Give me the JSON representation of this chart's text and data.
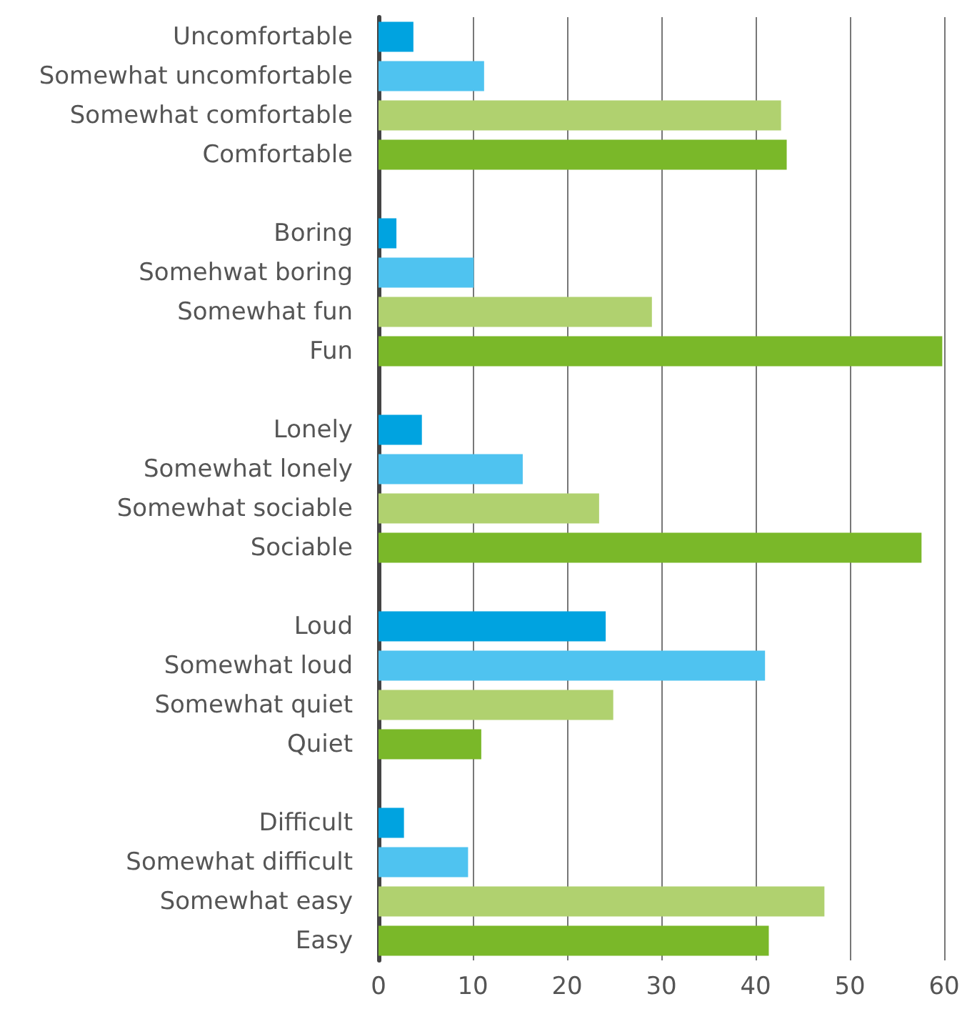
{
  "chart_data": {
    "type": "bar",
    "orientation": "horizontal",
    "categories": [
      "Uncomfortable",
      "Somewhat uncomfortable",
      "Somewhat comfortable",
      "Comfortable",
      null,
      "Boring",
      "Somehwat boring",
      "Somewhat fun",
      "Fun",
      null,
      "Lonely",
      "Somewhat lonely",
      "Somewhat sociable",
      "Sociable",
      null,
      "Loud",
      "Somewhat loud",
      "Somewhat quiet",
      "Quiet",
      null,
      "Difficult",
      "Somewhat difficult",
      "Somewhat easy",
      "Easy"
    ],
    "values": [
      3.7,
      11.2,
      42.7,
      43.3,
      null,
      1.9,
      10.1,
      29,
      59.8,
      null,
      4.6,
      15.3,
      23.4,
      57.6,
      null,
      24.1,
      41,
      24.9,
      10.9,
      null,
      2.7,
      9.5,
      47.3,
      41.4
    ],
    "colors": [
      "#00a3e0",
      "#4fc3f0",
      "#b0d16f",
      "#7ab829",
      null,
      "#00a3e0",
      "#4fc3f0",
      "#b0d16f",
      "#7ab829",
      null,
      "#00a3e0",
      "#4fc3f0",
      "#b0d16f",
      "#7ab829",
      null,
      "#00a3e0",
      "#4fc3f0",
      "#b0d16f",
      "#7ab829",
      null,
      "#00a3e0",
      "#4fc3f0",
      "#b0d16f",
      "#7ab829"
    ],
    "xlim": [
      0,
      60
    ],
    "xticks": [
      0,
      10,
      20,
      30,
      40,
      50,
      60
    ],
    "grid": "x"
  }
}
